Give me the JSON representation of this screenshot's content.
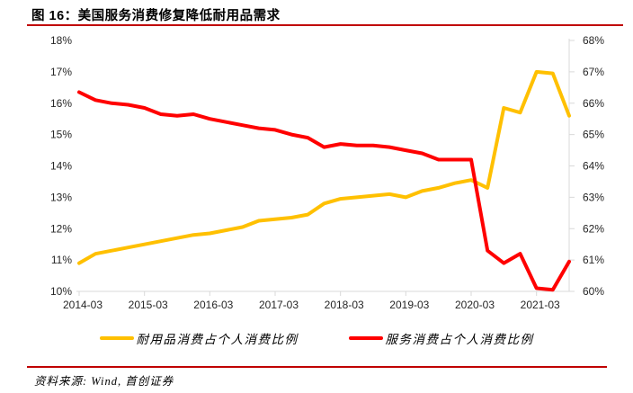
{
  "header": {
    "title": "图 16：美国服务消费修复降低耐用品需求"
  },
  "colors": {
    "accent_rule": "#C00000",
    "durables_line": "#FFC000",
    "services_line": "#FF0000",
    "axis_line": "#D9D9D9",
    "tick_text": "#262626"
  },
  "chart_data": {
    "type": "line",
    "title": "图 16：美国服务消费修复降低耐用品需求",
    "x": [
      "2014-03",
      "2014-06",
      "2014-09",
      "2014-12",
      "2015-03",
      "2015-06",
      "2015-09",
      "2015-12",
      "2016-03",
      "2016-06",
      "2016-09",
      "2016-12",
      "2017-03",
      "2017-06",
      "2017-09",
      "2017-12",
      "2018-03",
      "2018-06",
      "2018-09",
      "2018-12",
      "2019-03",
      "2019-06",
      "2019-09",
      "2019-12",
      "2020-03",
      "2020-06",
      "2020-09",
      "2020-12",
      "2021-03",
      "2021-06",
      "2021-09"
    ],
    "x_tick_indices": [
      0,
      4,
      8,
      12,
      16,
      20,
      24,
      28
    ],
    "x_tick_labels": [
      "2014-03",
      "2015-03",
      "2016-03",
      "2017-03",
      "2018-03",
      "2019-03",
      "2020-03",
      "2021-03"
    ],
    "left_axis": {
      "min": 10,
      "max": 18,
      "step": 1,
      "suffix": "%",
      "tick_labels": [
        "18%",
        "17%",
        "16%",
        "15%",
        "14%",
        "13%",
        "12%",
        "11%",
        "10%"
      ]
    },
    "right_axis": {
      "min": 60,
      "max": 68,
      "step": 1,
      "suffix": "%",
      "tick_labels": [
        "68%",
        "67%",
        "66%",
        "65%",
        "64%",
        "63%",
        "62%",
        "61%",
        "60%"
      ]
    },
    "grid": false,
    "legend_position": "bottom",
    "series": [
      {
        "name": "耐用品消费占个人消费比例",
        "axis": "left",
        "color": "#FFC000",
        "values": [
          10.9,
          11.2,
          11.3,
          11.4,
          11.5,
          11.6,
          11.7,
          11.8,
          11.85,
          11.95,
          12.05,
          12.25,
          12.3,
          12.35,
          12.45,
          12.8,
          12.95,
          13.0,
          13.05,
          13.1,
          13.0,
          13.2,
          13.3,
          13.45,
          13.55,
          13.3,
          15.85,
          15.7,
          17.0,
          16.95,
          15.6
        ]
      },
      {
        "name": "服务消费占个人消费比例",
        "axis": "right",
        "color": "#FF0000",
        "values": [
          66.35,
          66.1,
          66.0,
          65.95,
          65.85,
          65.65,
          65.6,
          65.65,
          65.5,
          65.4,
          65.3,
          65.2,
          65.15,
          65.0,
          64.9,
          64.6,
          64.7,
          64.65,
          64.65,
          64.6,
          64.5,
          64.4,
          64.2,
          64.2,
          64.2,
          61.3,
          60.9,
          61.2,
          60.1,
          60.05,
          60.95
        ]
      }
    ]
  },
  "footer": {
    "source": "资料来源: Wind, 首创证券"
  }
}
